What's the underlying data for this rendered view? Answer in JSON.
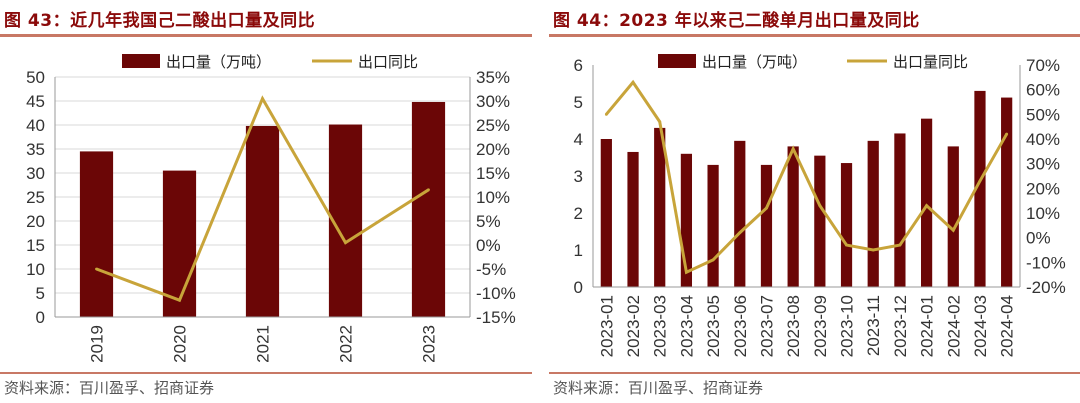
{
  "left": {
    "title": "图 43：近几年我国己二酸出口量及同比",
    "source": "资料来源：百川盈孚、招商证券",
    "chart_data": {
      "type": "bar",
      "categories": [
        "2019",
        "2020",
        "2021",
        "2022",
        "2023"
      ],
      "series": [
        {
          "name": "出口量（万吨）",
          "type": "bar",
          "axis": "left",
          "values": [
            34.5,
            30.5,
            39.8,
            40.1,
            44.8
          ]
        },
        {
          "name": "出口同比",
          "type": "line",
          "axis": "right",
          "values": [
            -5,
            -11.5,
            30.5,
            0.5,
            11.5
          ]
        }
      ],
      "ylim": [
        0,
        50
      ],
      "yticks": [
        "0",
        "5",
        "10",
        "15",
        "20",
        "25",
        "30",
        "35",
        "40",
        "45",
        "50"
      ],
      "y2lim": [
        -15,
        35
      ],
      "y2ticks": [
        "-15%",
        "-10%",
        "-5%",
        "0%",
        "5%",
        "10%",
        "15%",
        "20%",
        "25%",
        "30%",
        "35%"
      ],
      "grid": true,
      "legend": "top-center"
    }
  },
  "right": {
    "title": "图 44：2023 年以来己二酸单月出口量及同比",
    "source": "资料来源：百川盈孚、招商证券",
    "chart_data": {
      "type": "bar",
      "categories": [
        "2023-01",
        "2023-02",
        "2023-03",
        "2023-04",
        "2023-05",
        "2023-06",
        "2023-07",
        "2023-08",
        "2023-09",
        "2023-10",
        "2023-11",
        "2023-12",
        "2024-01",
        "2024-02",
        "2024-03",
        "2024-04"
      ],
      "series": [
        {
          "name": "出口量（万吨）",
          "type": "bar",
          "axis": "left",
          "values": [
            4.0,
            3.65,
            4.3,
            3.6,
            3.3,
            3.95,
            3.3,
            3.8,
            3.55,
            3.35,
            3.95,
            4.15,
            4.55,
            3.8,
            5.3,
            5.12
          ]
        },
        {
          "name": "出口量同比",
          "type": "line",
          "axis": "right",
          "values": [
            50,
            63,
            47,
            -14,
            -9,
            2,
            12,
            36,
            13,
            -3,
            -5,
            -3,
            13,
            3,
            23,
            42
          ]
        }
      ],
      "ylim": [
        0,
        6
      ],
      "yticks": [
        "0",
        "1",
        "2",
        "3",
        "4",
        "5",
        "6"
      ],
      "y2lim": [
        -20,
        70
      ],
      "y2ticks": [
        "-20%",
        "-10%",
        "0%",
        "10%",
        "20%",
        "30%",
        "40%",
        "50%",
        "60%",
        "70%"
      ],
      "grid": false,
      "legend": "top-center"
    }
  },
  "colors": {
    "bar": "#6b0606",
    "line": "#c8a43a",
    "axis": "#9a9a9a",
    "grid": "#d9d9d9",
    "title": "#8b0a0a",
    "rule": "#c87865"
  }
}
